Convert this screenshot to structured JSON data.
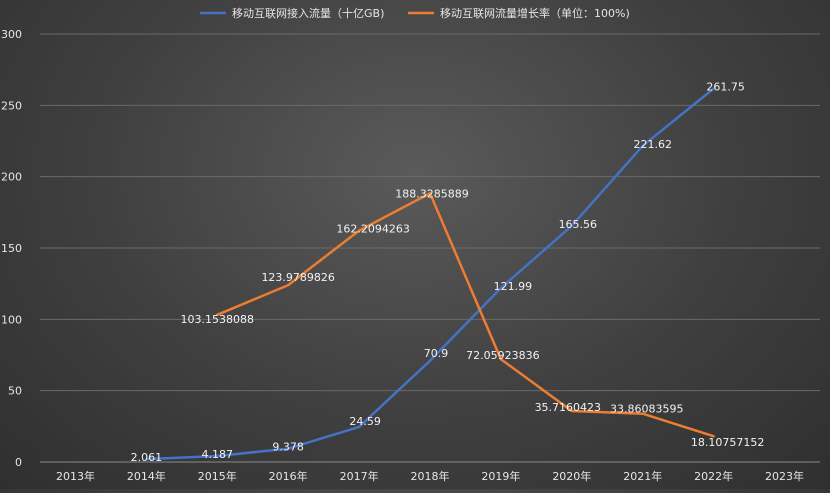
{
  "chart_data": {
    "type": "line",
    "categories": [
      "2013年",
      "2014年",
      "2015年",
      "2016年",
      "2017年",
      "2018年",
      "2019年",
      "2020年",
      "2021年",
      "2022年",
      "2023年"
    ],
    "ylim": [
      0,
      300
    ],
    "yticks": [
      0,
      50,
      100,
      150,
      200,
      250,
      300
    ],
    "grid": true,
    "legend_position": "top",
    "series": [
      {
        "name": "移动互联网接入流量（十亿GB)",
        "color": "#4472c4",
        "values": [
          null,
          2.061,
          4.187,
          9.378,
          24.59,
          70.9,
          121.99,
          165.56,
          221.62,
          261.75,
          null
        ],
        "labels": [
          null,
          "2.061",
          "4.187",
          "9.378",
          "24.59",
          "70.9",
          "121.99",
          "165.56",
          "221.62",
          "261.75",
          null
        ]
      },
      {
        "name": "移动互联网流量增长率（单位：100%)",
        "color": "#ed7d31",
        "values": [
          null,
          null,
          103.1538088,
          123.9789826,
          162.2094263,
          188.3285889,
          72.05923836,
          35.7160423,
          33.86083595,
          18.10757152,
          null
        ],
        "labels": [
          null,
          null,
          "103.1538088",
          "123.9789826",
          "162.2094263",
          "188.3285889",
          "72.05923836",
          "35.7160423",
          "33.86083595",
          "18.10757152",
          null
        ]
      }
    ]
  }
}
